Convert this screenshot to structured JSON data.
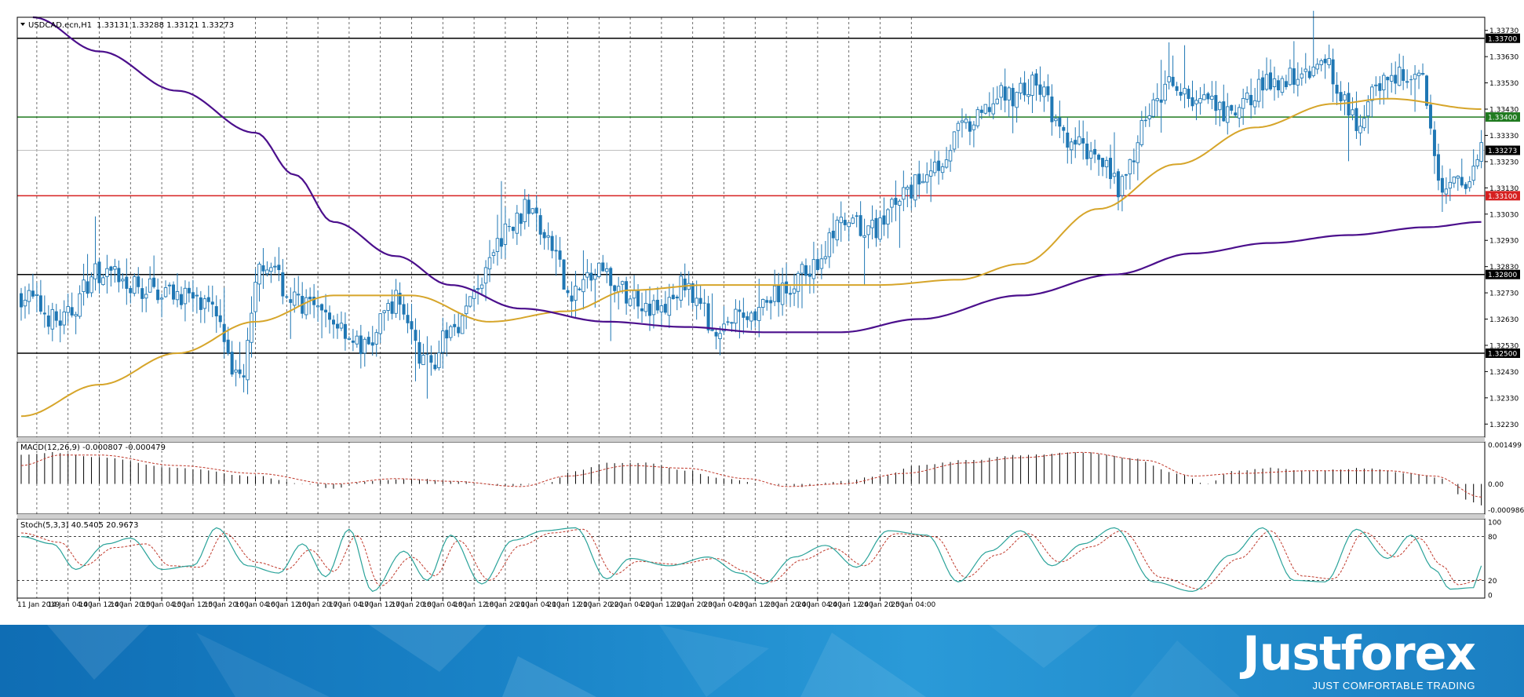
{
  "header": {
    "symbol": "USDCAD.ecn,H1",
    "ohlc": "1.33131 1.33288 1.33121 1.33273"
  },
  "macd_header": "MACD(12,26,9) -0.000807 -0.000479",
  "stoch_header": "Stoch(5,3,3) 40.5405 20.9673",
  "colors": {
    "candle": "#1f77b4",
    "ma_slow": "#4b0f8c",
    "ma_fast": "#d6a52a",
    "resistance_line": "#000000",
    "green_level": "#1f7a1f",
    "red_level": "#d62020",
    "current_price_line": "#c0c0c0",
    "stoch_main": "#2aa39a",
    "stoch_signal": "#c0392b",
    "banner": "#1a84c8"
  },
  "brand": {
    "logo": "Justforex",
    "tagline": "JUST COMFORTABLE TRADING"
  },
  "chart_data": [
    {
      "type": "candlestick",
      "title": "USDCAD.ecn,H1",
      "ylim": [
        1.3218,
        1.3378
      ],
      "y_ticks": [
        "1.33730",
        "1.33630",
        "1.33530",
        "1.33430",
        "1.33330",
        "1.33230",
        "1.33130",
        "1.33030",
        "1.32930",
        "1.32830",
        "1.32730",
        "1.32630",
        "1.32530",
        "1.32430",
        "1.32330",
        "1.32230"
      ],
      "x_ticks": [
        "11 Jan 2019",
        "14 Jan 04:00",
        "14 Jan 12:00",
        "14 Jan 20:00",
        "15 Jan 04:00",
        "15 Jan 12:00",
        "15 Jan 20:00",
        "16 Jan 04:00",
        "16 Jan 12:00",
        "16 Jan 20:00",
        "17 Jan 04:00",
        "17 Jan 12:00",
        "17 Jan 20:00",
        "18 Jan 04:00",
        "18 Jan 12:00",
        "18 Jan 20:00",
        "21 Jan 04:00",
        "21 Jan 12:00",
        "21 Jan 20:00",
        "22 Jan 04:00",
        "22 Jan 12:00",
        "22 Jan 20:00",
        "23 Jan 04:00",
        "23 Jan 12:00",
        "23 Jan 20:00",
        "24 Jan 04:00",
        "24 Jan 12:00",
        "24 Jan 20:00",
        "25 Jan 04:00"
      ],
      "levels": [
        {
          "value": 1.337,
          "label": "1.33700",
          "kind": "black"
        },
        {
          "value": 1.334,
          "label": "1.33400",
          "kind": "green"
        },
        {
          "value": 1.33273,
          "label": "1.33273",
          "kind": "current"
        },
        {
          "value": 1.331,
          "label": "1.33100",
          "kind": "red"
        },
        {
          "value": 1.328,
          "label": "1.32800",
          "kind": "black"
        },
        {
          "value": 1.325,
          "label": "1.32500",
          "kind": "black"
        }
      ],
      "close_anchors": [
        [
          0,
          1.3272
        ],
        [
          10,
          1.3262
        ],
        [
          20,
          1.3281
        ],
        [
          30,
          1.3275
        ],
        [
          40,
          1.3273
        ],
        [
          50,
          1.3265
        ],
        [
          56,
          1.324
        ],
        [
          62,
          1.3285
        ],
        [
          70,
          1.327
        ],
        [
          80,
          1.3262
        ],
        [
          88,
          1.3252
        ],
        [
          96,
          1.327
        ],
        [
          104,
          1.3246
        ],
        [
          112,
          1.3262
        ],
        [
          118,
          1.3278
        ],
        [
          124,
          1.3296
        ],
        [
          130,
          1.3305
        ],
        [
          136,
          1.329
        ],
        [
          140,
          1.3273
        ],
        [
          148,
          1.328
        ],
        [
          156,
          1.3272
        ],
        [
          164,
          1.3266
        ],
        [
          170,
          1.3276
        ],
        [
          178,
          1.326
        ],
        [
          186,
          1.3265
        ],
        [
          194,
          1.3272
        ],
        [
          202,
          1.3282
        ],
        [
          210,
          1.3298
        ],
        [
          218,
          1.3297
        ],
        [
          226,
          1.331
        ],
        [
          234,
          1.3322
        ],
        [
          242,
          1.3336
        ],
        [
          252,
          1.3348
        ],
        [
          260,
          1.3352
        ],
        [
          268,
          1.333
        ],
        [
          276,
          1.3326
        ],
        [
          282,
          1.3313
        ],
        [
          288,
          1.334
        ],
        [
          294,
          1.3352
        ],
        [
          302,
          1.3346
        ],
        [
          310,
          1.334
        ],
        [
          318,
          1.3352
        ],
        [
          326,
          1.3356
        ],
        [
          334,
          1.336
        ],
        [
          342,
          1.3338
        ],
        [
          350,
          1.3356
        ],
        [
          358,
          1.3355
        ],
        [
          364,
          1.3315
        ],
        [
          368,
          1.3314
        ],
        [
          372,
          1.332
        ],
        [
          374,
          1.3327
        ]
      ],
      "ma_fast_anchors": [
        [
          0,
          1.3226
        ],
        [
          20,
          1.3238
        ],
        [
          40,
          1.325
        ],
        [
          60,
          1.3262
        ],
        [
          80,
          1.3272
        ],
        [
          100,
          1.3272
        ],
        [
          120,
          1.3262
        ],
        [
          140,
          1.3266
        ],
        [
          156,
          1.3274
        ],
        [
          176,
          1.3276
        ],
        [
          200,
          1.3276
        ],
        [
          220,
          1.3276
        ],
        [
          240,
          1.3278
        ],
        [
          256,
          1.3284
        ],
        [
          276,
          1.3305
        ],
        [
          296,
          1.3322
        ],
        [
          316,
          1.3336
        ],
        [
          336,
          1.3345
        ],
        [
          350,
          1.3347
        ],
        [
          374,
          1.3343
        ]
      ],
      "ma_slow_anchors": [
        [
          3,
          1.3378
        ],
        [
          20,
          1.3365
        ],
        [
          40,
          1.335
        ],
        [
          60,
          1.3334
        ],
        [
          70,
          1.3318
        ],
        [
          80,
          1.33
        ],
        [
          96,
          1.3287
        ],
        [
          110,
          1.3276
        ],
        [
          128,
          1.3267
        ],
        [
          150,
          1.3262
        ],
        [
          170,
          1.326
        ],
        [
          190,
          1.3258
        ],
        [
          210,
          1.3258
        ],
        [
          230,
          1.3263
        ],
        [
          256,
          1.3272
        ],
        [
          280,
          1.328
        ],
        [
          300,
          1.3288
        ],
        [
          320,
          1.3292
        ],
        [
          340,
          1.3295
        ],
        [
          360,
          1.3298
        ],
        [
          374,
          1.33
        ]
      ],
      "candle_count": 375
    },
    {
      "type": "bar",
      "title": "MACD(12,26,9) -0.000807 -0.000479",
      "ylim": [
        -0.00115,
        0.0016
      ],
      "y_ticks": [
        "0.001499",
        "0.00",
        "-0.000986"
      ],
      "macd_anchors": [
        [
          0,
          0.0011
        ],
        [
          8,
          0.0012
        ],
        [
          20,
          0.001
        ],
        [
          40,
          0.0006
        ],
        [
          60,
          0.0003
        ],
        [
          72,
          0.0
        ],
        [
          80,
          -0.0002
        ],
        [
          88,
          0.0001
        ],
        [
          100,
          0.0002
        ],
        [
          112,
          0.0001
        ],
        [
          124,
          -0.0001
        ],
        [
          134,
          0.0
        ],
        [
          142,
          0.0005
        ],
        [
          150,
          0.0008
        ],
        [
          160,
          0.0008
        ],
        [
          170,
          0.0005
        ],
        [
          180,
          0.0002
        ],
        [
          190,
          0.0
        ],
        [
          200,
          -0.0001
        ],
        [
          210,
          0.0001
        ],
        [
          220,
          0.0003
        ],
        [
          230,
          0.0007
        ],
        [
          242,
          0.0009
        ],
        [
          256,
          0.0011
        ],
        [
          272,
          0.0012
        ],
        [
          284,
          0.001
        ],
        [
          296,
          0.0004
        ],
        [
          304,
          0.0
        ],
        [
          310,
          0.0005
        ],
        [
          320,
          0.0006
        ],
        [
          330,
          0.0005
        ],
        [
          344,
          0.0006
        ],
        [
          356,
          0.0004
        ],
        [
          364,
          0.0002
        ],
        [
          370,
          -0.0006
        ],
        [
          374,
          -0.0008
        ]
      ],
      "signal_anchors": [
        [
          0,
          0.0007
        ],
        [
          10,
          0.0011
        ],
        [
          20,
          0.0011
        ],
        [
          40,
          0.0007
        ],
        [
          60,
          0.0004
        ],
        [
          80,
          0.0
        ],
        [
          96,
          0.0002
        ],
        [
          110,
          0.0001
        ],
        [
          128,
          -0.0001
        ],
        [
          140,
          0.0003
        ],
        [
          156,
          0.0007
        ],
        [
          170,
          0.0006
        ],
        [
          186,
          0.0002
        ],
        [
          196,
          -0.0001
        ],
        [
          210,
          0.0
        ],
        [
          226,
          0.0004
        ],
        [
          242,
          0.0008
        ],
        [
          256,
          0.001
        ],
        [
          272,
          0.0012
        ],
        [
          288,
          0.0009
        ],
        [
          300,
          0.0003
        ],
        [
          312,
          0.0004
        ],
        [
          330,
          0.0005
        ],
        [
          350,
          0.0005
        ],
        [
          362,
          0.0003
        ],
        [
          374,
          -0.0005
        ]
      ]
    },
    {
      "type": "line",
      "title": "Stoch(5,3,3) 40.5405 20.9673",
      "ylim": [
        0,
        100
      ],
      "y_ticks": [
        "100",
        "80",
        "20",
        "0"
      ],
      "levels": [
        80,
        20
      ],
      "main_anchors": [
        [
          0,
          80
        ],
        [
          8,
          70
        ],
        [
          14,
          35
        ],
        [
          22,
          70
        ],
        [
          28,
          78
        ],
        [
          36,
          35
        ],
        [
          44,
          40
        ],
        [
          50,
          92
        ],
        [
          58,
          40
        ],
        [
          66,
          30
        ],
        [
          72,
          70
        ],
        [
          78,
          25
        ],
        [
          84,
          90
        ],
        [
          90,
          5
        ],
        [
          98,
          60
        ],
        [
          104,
          20
        ],
        [
          110,
          82
        ],
        [
          118,
          15
        ],
        [
          126,
          75
        ],
        [
          134,
          88
        ],
        [
          142,
          92
        ],
        [
          150,
          22
        ],
        [
          156,
          50
        ],
        [
          166,
          40
        ],
        [
          176,
          52
        ],
        [
          184,
          30
        ],
        [
          190,
          15
        ],
        [
          198,
          52
        ],
        [
          206,
          68
        ],
        [
          214,
          38
        ],
        [
          222,
          88
        ],
        [
          232,
          82
        ],
        [
          240,
          18
        ],
        [
          248,
          60
        ],
        [
          256,
          88
        ],
        [
          264,
          40
        ],
        [
          272,
          70
        ],
        [
          280,
          92
        ],
        [
          290,
          18
        ],
        [
          300,
          5
        ],
        [
          310,
          55
        ],
        [
          318,
          92
        ],
        [
          326,
          20
        ],
        [
          334,
          18
        ],
        [
          342,
          90
        ],
        [
          350,
          50
        ],
        [
          356,
          82
        ],
        [
          362,
          35
        ],
        [
          366,
          8
        ],
        [
          372,
          10
        ],
        [
          374,
          40
        ]
      ],
      "signal_anchors": [
        [
          0,
          85
        ],
        [
          10,
          72
        ],
        [
          16,
          40
        ],
        [
          24,
          65
        ],
        [
          32,
          70
        ],
        [
          38,
          40
        ],
        [
          46,
          38
        ],
        [
          52,
          85
        ],
        [
          60,
          45
        ],
        [
          68,
          35
        ],
        [
          74,
          62
        ],
        [
          80,
          32
        ],
        [
          86,
          82
        ],
        [
          92,
          12
        ],
        [
          100,
          52
        ],
        [
          106,
          26
        ],
        [
          112,
          75
        ],
        [
          120,
          20
        ],
        [
          128,
          68
        ],
        [
          136,
          85
        ],
        [
          144,
          90
        ],
        [
          152,
          28
        ],
        [
          158,
          46
        ],
        [
          168,
          42
        ],
        [
          178,
          50
        ],
        [
          186,
          32
        ],
        [
          192,
          18
        ],
        [
          200,
          48
        ],
        [
          208,
          64
        ],
        [
          216,
          40
        ],
        [
          224,
          84
        ],
        [
          234,
          80
        ],
        [
          242,
          24
        ],
        [
          250,
          55
        ],
        [
          258,
          84
        ],
        [
          266,
          45
        ],
        [
          274,
          66
        ],
        [
          282,
          88
        ],
        [
          292,
          24
        ],
        [
          302,
          8
        ],
        [
          312,
          50
        ],
        [
          320,
          88
        ],
        [
          328,
          26
        ],
        [
          336,
          22
        ],
        [
          344,
          86
        ],
        [
          352,
          52
        ],
        [
          358,
          78
        ],
        [
          364,
          40
        ],
        [
          368,
          14
        ],
        [
          374,
          21
        ]
      ]
    }
  ]
}
